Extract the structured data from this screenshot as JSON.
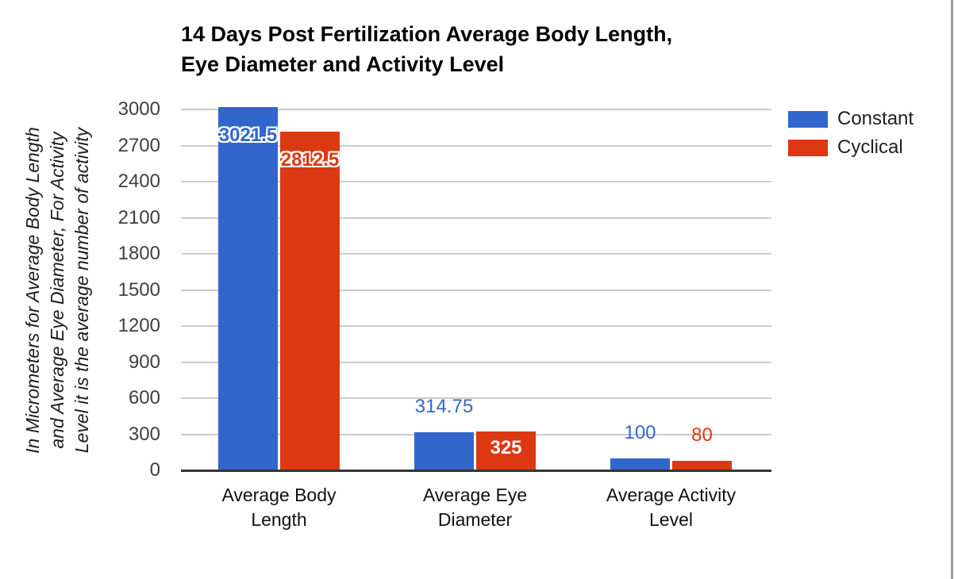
{
  "window": {
    "right_edge_color": "#9e9e9e"
  },
  "chart_data": {
    "type": "bar",
    "title_line1": "14 Days Post Fertilization Average Body Length,",
    "title_line2": "Eye Diameter and Activity Level",
    "ylabel_lines": [
      "In Micrometers for Average Body Length",
      "and Average Eye Diameter, For Activity",
      "Level it is the average number of activity"
    ],
    "categories": [
      "Average Body Length",
      "Average Eye Diameter",
      "Average Activity Level"
    ],
    "series": [
      {
        "name": "Constant",
        "color": "#3366CC",
        "values": [
          3021.5,
          314.75,
          100
        ],
        "labels": [
          {
            "text": "3021.5",
            "style": "inside-outline"
          },
          {
            "text": "314.75",
            "style": "outside"
          },
          {
            "text": "100",
            "style": "outside"
          }
        ]
      },
      {
        "name": "Cyclical",
        "color": "#DC3912",
        "values": [
          2812.5,
          325,
          80
        ],
        "labels": [
          {
            "text": "2812.5",
            "style": "inside-outline"
          },
          {
            "text": "325",
            "style": "inside-white"
          },
          {
            "text": "80",
            "style": "outside"
          }
        ]
      }
    ],
    "yticks": [
      0,
      300,
      600,
      900,
      1200,
      1500,
      1800,
      2100,
      2400,
      2700,
      3000
    ],
    "ylim": [
      0,
      3000
    ],
    "grid": true,
    "legend_position": "right",
    "colors": {
      "gridline": "#cccccc",
      "baseline": "#333333",
      "tick_text": "#404040",
      "category_text": "#111111",
      "legend_text": "#212121",
      "title_text": "#000000"
    }
  }
}
